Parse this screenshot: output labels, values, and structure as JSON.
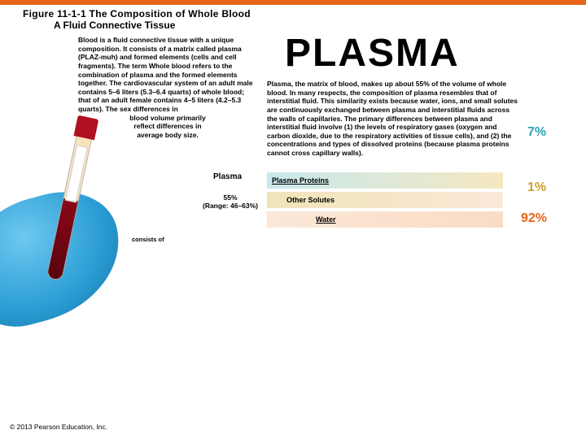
{
  "header": {
    "figure_title": "Figure 11-1-1  The Composition of Whole Blood",
    "subtitle": "A Fluid Connective Tissue"
  },
  "blood_description": {
    "main": "Blood is a fluid connective tissue with a unique composition. It consists of a matrix called plasma (PLAZ-muh) and formed elements (cells and cell fragments). The term Whole blood refers to the combination of plasma and the formed elements together. The cardiovascular system of an adult male contains 5–6 liters (5.3–6.4 quarts) of whole blood; that of an adult female contains 4–5 liters (4.2–5.3 quarts). The sex differences in",
    "tail1": "blood volume primarily",
    "tail2": "reflect differences in",
    "tail3": "average body size."
  },
  "plasma": {
    "title": "PLASMA",
    "description": "Plasma, the matrix of blood, makes up about 55% of the volume of whole blood. In many respects, the composition of plasma resembles that of interstitial fluid. This similarity exists because water, ions, and small solutes are continuously exchanged between plasma and interstitial fluids across the walls of capillaries. The primary differences between plasma and interstitial fluid involve (1) the levels of respiratory gases (oxygen and carbon dioxide, due to the respiratory activities of tissue cells), and (2) the concentrations and types of dissolved proteins (because plasma proteins cannot cross capillary walls).",
    "label": "Plasma",
    "pct_line1": "55%",
    "pct_line2": "(Range: 46–63%)"
  },
  "rows": {
    "proteins": "Plasma Proteins",
    "solutes": "Other Solutes",
    "water": "Water"
  },
  "percentages": {
    "proteins": "7%",
    "solutes": "1%",
    "water": "92%"
  },
  "consists_label": "consists of",
  "copyright": "© 2013 Pearson Education, Inc.",
  "colors": {
    "top_bar": "#e8651c",
    "pct_proteins": "#2aa3b8",
    "pct_solutes": "#c8a030",
    "pct_water": "#e8651c"
  }
}
